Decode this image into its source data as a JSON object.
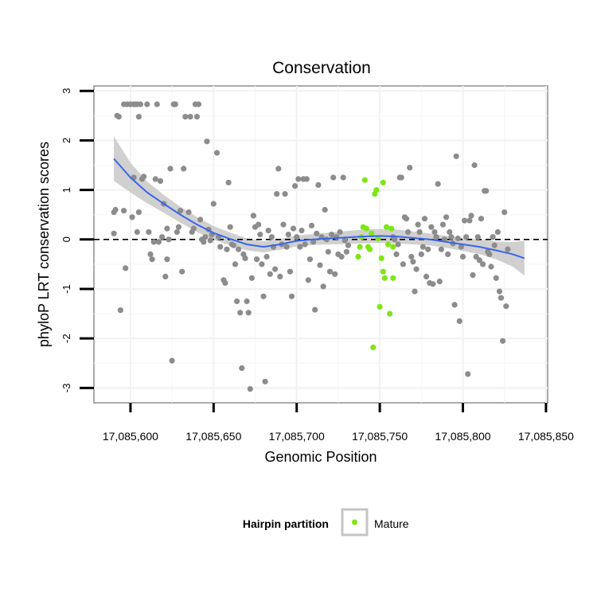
{
  "chart_data": {
    "type": "scatter",
    "title": "Conservation",
    "xlabel": "Genomic Position",
    "ylabel": "phyloP LRT conservation scores",
    "xlim": [
      17085578,
      17085851
    ],
    "ylim": [
      -3.3,
      3.1
    ],
    "x_ticks": [
      17085600,
      17085650,
      17085700,
      17085750,
      17085800,
      17085850
    ],
    "x_tick_labels": [
      "17,085,600",
      "17,085,650",
      "17,085,700",
      "17,085,750",
      "17,085,800",
      "17,085,850"
    ],
    "y_ticks": [
      -3,
      -2,
      -1,
      0,
      1,
      2,
      3
    ],
    "y_tick_labels": [
      "-3",
      "-2",
      "-1",
      "0",
      "1",
      "2",
      "3"
    ],
    "reference_line": {
      "y": 0,
      "style": "dashed"
    },
    "grid": true,
    "legend": {
      "title": "Hairpin partition",
      "position": "bottom",
      "items": [
        {
          "label": "Mature",
          "color": "#7FE517"
        }
      ]
    },
    "colors": {
      "background_points": "#8C8C8C",
      "mature_points": "#7FE517",
      "smooth_line": "#3A66E8",
      "ribbon": "#C8C8C8"
    },
    "series": [
      {
        "color": "#8C8C8C",
        "points": [
          [
            17085590,
            0.55
          ],
          [
            17085591,
            0.6
          ],
          [
            17085590,
            0.12
          ],
          [
            17085592,
            2.5
          ],
          [
            17085593,
            2.48
          ],
          [
            17085594,
            -1.43
          ],
          [
            17085596,
            0.58
          ],
          [
            17085596,
            2.73
          ],
          [
            17085598,
            2.73
          ],
          [
            17085597,
            -0.58
          ],
          [
            17085600,
            2.73
          ],
          [
            17085602,
            2.73
          ],
          [
            17085604,
            2.73
          ],
          [
            17085603,
            2.73
          ],
          [
            17085606,
            2.73
          ],
          [
            17085605,
            2.48
          ],
          [
            17085607,
            1.22
          ],
          [
            17085608,
            1.27
          ],
          [
            17085601,
            0.45
          ],
          [
            17085602,
            1.25
          ],
          [
            17085605,
            0.55
          ],
          [
            17085604,
            0.15
          ],
          [
            17085610,
            2.73
          ],
          [
            17085611,
            0.15
          ],
          [
            17085612,
            -0.3
          ],
          [
            17085613,
            -0.4
          ],
          [
            17085614,
            -0.05
          ],
          [
            17085616,
            2.73
          ],
          [
            17085615,
            1.22
          ],
          [
            17085617,
            -0.05
          ],
          [
            17085618,
            1.18
          ],
          [
            17085619,
            0.05
          ],
          [
            17085620,
            0.72
          ],
          [
            17085621,
            -0.75
          ],
          [
            17085622,
            -0.4
          ],
          [
            17085622,
            0.22
          ],
          [
            17085623,
            0.0
          ],
          [
            17085624,
            1.43
          ],
          [
            17085625,
            -2.45
          ],
          [
            17085626,
            2.73
          ],
          [
            17085627,
            2.73
          ],
          [
            17085628,
            0.15
          ],
          [
            17085629,
            0.25
          ],
          [
            17085630,
            0.58
          ],
          [
            17085631,
            -0.65
          ],
          [
            17085632,
            1.43
          ],
          [
            17085633,
            2.48
          ],
          [
            17085635,
            0.55
          ],
          [
            17085636,
            2.48
          ],
          [
            17085637,
            0.15
          ],
          [
            17085638,
            0.22
          ],
          [
            17085639,
            2.73
          ],
          [
            17085640,
            2.48
          ],
          [
            17085641,
            2.73
          ],
          [
            17085642,
            0.4
          ],
          [
            17085643,
            0.0
          ],
          [
            17085644,
            -0.05
          ],
          [
            17085645,
            0.05
          ],
          [
            17085646,
            1.98
          ],
          [
            17085647,
            0.2
          ],
          [
            17085648,
            -0.02
          ],
          [
            17085649,
            0.1
          ],
          [
            17085650,
            0.72
          ],
          [
            17085652,
            1.75
          ],
          [
            17085653,
            0.05
          ],
          [
            17085654,
            -0.15
          ],
          [
            17085656,
            -0.82
          ],
          [
            17085657,
            -0.88
          ],
          [
            17085658,
            -0.2
          ],
          [
            17085659,
            1.15
          ],
          [
            17085660,
            0.25
          ],
          [
            17085661,
            -0.1
          ],
          [
            17085662,
            -0.12
          ],
          [
            17085663,
            -0.5
          ],
          [
            17085664,
            -1.25
          ],
          [
            17085665,
            -0.2
          ],
          [
            17085666,
            -1.48
          ],
          [
            17085667,
            -2.6
          ],
          [
            17085668,
            -0.3
          ],
          [
            17085669,
            -0.38
          ],
          [
            17085670,
            -1.25
          ],
          [
            17085671,
            -1.48
          ],
          [
            17085672,
            -3.02
          ],
          [
            17085673,
            -0.78
          ],
          [
            17085674,
            0.48
          ],
          [
            17085675,
            0.25
          ],
          [
            17085676,
            -0.4
          ],
          [
            17085677,
            0.3
          ],
          [
            17085678,
            0.1
          ],
          [
            17085679,
            -0.5
          ],
          [
            17085680,
            -1.15
          ],
          [
            17085681,
            -2.87
          ],
          [
            17085682,
            -0.35
          ],
          [
            17085683,
            0.18
          ],
          [
            17085684,
            -0.7
          ],
          [
            17085685,
            0.05
          ],
          [
            17085686,
            -0.15
          ],
          [
            17085687,
            -0.6
          ],
          [
            17085688,
            0.92
          ],
          [
            17085689,
            1.43
          ],
          [
            17085690,
            -0.75
          ],
          [
            17085691,
            -0.1
          ],
          [
            17085692,
            0.3
          ],
          [
            17085693,
            0.92
          ],
          [
            17085694,
            -0.15
          ],
          [
            17085695,
            0.1
          ],
          [
            17085696,
            -0.65
          ],
          [
            17085697,
            -1.15
          ],
          [
            17085698,
            0.22
          ],
          [
            17085699,
            1.08
          ],
          [
            17085700,
            0.05
          ],
          [
            17085701,
            1.22
          ],
          [
            17085702,
            -0.15
          ],
          [
            17085703,
            0.18
          ],
          [
            17085704,
            1.22
          ],
          [
            17085705,
            -0.1
          ],
          [
            17085706,
            1.22
          ],
          [
            17085707,
            -0.82
          ],
          [
            17085708,
            -0.4
          ],
          [
            17085709,
            0.28
          ],
          [
            17085710,
            -0.05
          ],
          [
            17085711,
            -1.42
          ],
          [
            17085712,
            0.12
          ],
          [
            17085713,
            1.1
          ],
          [
            17085714,
            -0.52
          ],
          [
            17085715,
            0.05
          ],
          [
            17085716,
            -0.95
          ],
          [
            17085717,
            0.6
          ],
          [
            17085718,
            0.0
          ],
          [
            17085719,
            -0.25
          ],
          [
            17085720,
            -0.65
          ],
          [
            17085721,
            0.1
          ],
          [
            17085722,
            1.25
          ],
          [
            17085723,
            -0.7
          ],
          [
            17085724,
            0.05
          ],
          [
            17085725,
            -0.3
          ],
          [
            17085726,
            0.15
          ],
          [
            17085727,
            -0.35
          ],
          [
            17085728,
            1.25
          ],
          [
            17085729,
            -0.02
          ],
          [
            17085730,
            -0.25
          ],
          [
            17085731,
            -0.12
          ],
          [
            17085758,
            0.05
          ],
          [
            17085759,
            0.0
          ],
          [
            17085760,
            -0.3
          ],
          [
            17085761,
            -0.1
          ],
          [
            17085762,
            1.25
          ],
          [
            17085763,
            1.25
          ],
          [
            17085764,
            -0.5
          ],
          [
            17085765,
            0.45
          ],
          [
            17085766,
            0.42
          ],
          [
            17085767,
            0.15
          ],
          [
            17085768,
            1.45
          ],
          [
            17085769,
            -0.35
          ],
          [
            17085770,
            -0.45
          ],
          [
            17085771,
            -1.05
          ],
          [
            17085772,
            -0.6
          ],
          [
            17085773,
            0.3
          ],
          [
            17085774,
            0.15
          ],
          [
            17085775,
            -0.3
          ],
          [
            17085776,
            -0.15
          ],
          [
            17085777,
            0.42
          ],
          [
            17085778,
            -0.75
          ],
          [
            17085779,
            -0.2
          ],
          [
            17085780,
            -0.88
          ],
          [
            17085781,
            0.25
          ],
          [
            17085782,
            -0.9
          ],
          [
            17085783,
            0.15
          ],
          [
            17085784,
            0.05
          ],
          [
            17085785,
            1.12
          ],
          [
            17085786,
            -0.85
          ],
          [
            17085787,
            -0.2
          ],
          [
            17085788,
            0.3
          ],
          [
            17085789,
            0.0
          ],
          [
            17085790,
            0.45
          ],
          [
            17085791,
            -0.3
          ],
          [
            17085792,
            0.15
          ],
          [
            17085793,
            0.05
          ],
          [
            17085794,
            -0.08
          ],
          [
            17085795,
            -1.32
          ],
          [
            17085796,
            1.68
          ],
          [
            17085797,
            0.02
          ],
          [
            17085798,
            -1.65
          ],
          [
            17085799,
            -0.15
          ],
          [
            17085800,
            -0.35
          ],
          [
            17085801,
            0.38
          ],
          [
            17085802,
            0.05
          ],
          [
            17085803,
            -2.72
          ],
          [
            17085804,
            0.38
          ],
          [
            17085805,
            0.48
          ],
          [
            17085806,
            -0.72
          ],
          [
            17085807,
            1.5
          ],
          [
            17085808,
            -0.35
          ],
          [
            17085809,
            0.05
          ],
          [
            17085810,
            -0.42
          ],
          [
            17085811,
            0.42
          ],
          [
            17085812,
            -0.5
          ],
          [
            17085813,
            0.98
          ],
          [
            17085814,
            0.98
          ],
          [
            17085815,
            -0.25
          ],
          [
            17085816,
            -0.3
          ],
          [
            17085817,
            -0.55
          ],
          [
            17085818,
            0.05
          ],
          [
            17085819,
            -0.12
          ],
          [
            17085820,
            -0.78
          ],
          [
            17085821,
            0.15
          ],
          [
            17085822,
            -1.05
          ],
          [
            17085823,
            -1.18
          ],
          [
            17085824,
            -2.05
          ],
          [
            17085825,
            0.55
          ],
          [
            17085826,
            -1.35
          ],
          [
            17085827,
            -0.2
          ]
        ]
      },
      {
        "name": "Mature",
        "color": "#7FE517",
        "points": [
          [
            17085737,
            -0.35
          ],
          [
            17085738,
            -0.15
          ],
          [
            17085739,
            0.05
          ],
          [
            17085740,
            0.25
          ],
          [
            17085741,
            1.2
          ],
          [
            17085742,
            0.22
          ],
          [
            17085743,
            -0.15
          ],
          [
            17085744,
            -0.2
          ],
          [
            17085745,
            0.12
          ],
          [
            17085746,
            -2.18
          ],
          [
            17085747,
            0.92
          ],
          [
            17085748,
            1.0
          ],
          [
            17085749,
            0.02
          ],
          [
            17085750,
            -1.36
          ],
          [
            17085751,
            -0.38
          ],
          [
            17085752,
            1.15
          ],
          [
            17085752,
            -0.65
          ],
          [
            17085753,
            -0.78
          ],
          [
            17085754,
            0.25
          ],
          [
            17085755,
            -0.1
          ],
          [
            17085756,
            -1.5
          ],
          [
            17085757,
            0.22
          ],
          [
            17085758,
            -0.78
          ],
          [
            17085758,
            -0.15
          ]
        ]
      }
    ],
    "smooth_fit": {
      "x": [
        17085590,
        17085600,
        17085610,
        17085620,
        17085630,
        17085640,
        17085650,
        17085660,
        17085670,
        17085680,
        17085690,
        17085700,
        17085710,
        17085720,
        17085730,
        17085740,
        17085750,
        17085760,
        17085770,
        17085780,
        17085790,
        17085800,
        17085810,
        17085820,
        17085830,
        17085837
      ],
      "y": [
        1.63,
        1.25,
        0.95,
        0.72,
        0.5,
        0.3,
        0.13,
        0.01,
        -0.1,
        -0.15,
        -0.1,
        -0.03,
        0.0,
        0.02,
        0.04,
        0.06,
        0.07,
        0.06,
        0.03,
        0.0,
        -0.05,
        -0.1,
        -0.15,
        -0.22,
        -0.3,
        -0.38
      ],
      "band": [
        0.45,
        0.3,
        0.22,
        0.18,
        0.16,
        0.15,
        0.14,
        0.13,
        0.12,
        0.11,
        0.11,
        0.11,
        0.11,
        0.12,
        0.13,
        0.14,
        0.14,
        0.14,
        0.13,
        0.12,
        0.12,
        0.13,
        0.15,
        0.18,
        0.25,
        0.35
      ]
    }
  }
}
